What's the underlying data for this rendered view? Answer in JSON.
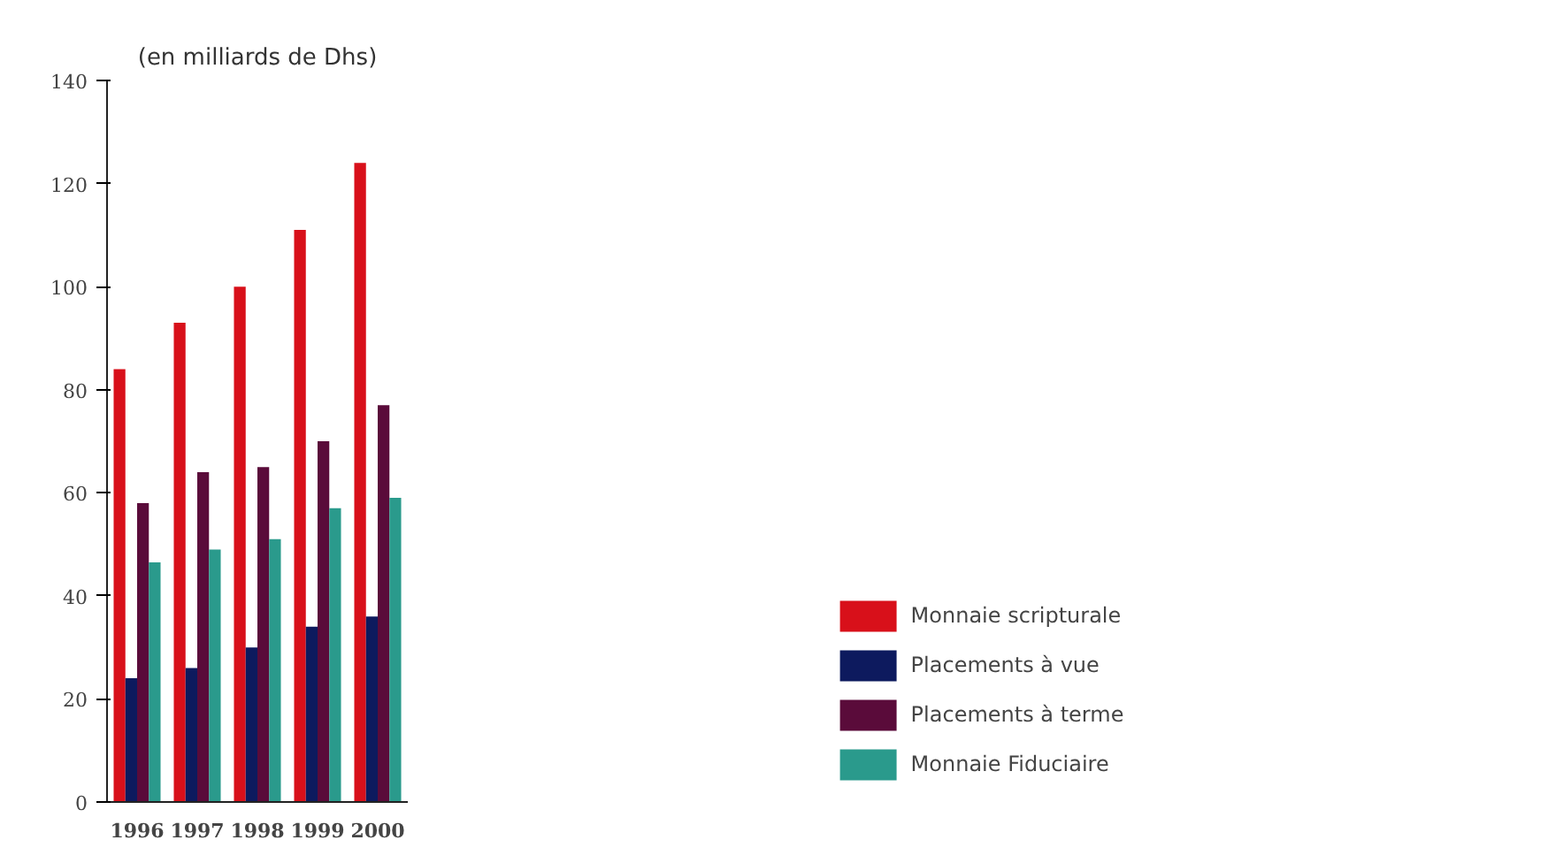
{
  "chart_data": {
    "type": "bar",
    "subtitle": "(en milliards de Dhs)",
    "categories": [
      "1996",
      "1997",
      "1998",
      "1999",
      "2000"
    ],
    "series": [
      {
        "name": "Monnaie scripturale",
        "color": "#d8101a",
        "values": [
          84,
          93,
          100,
          111,
          124
        ]
      },
      {
        "name": "Placements à vue",
        "color": "#0d1a5e",
        "values": [
          24,
          26,
          30,
          34,
          36
        ]
      },
      {
        "name": "Placements à terme",
        "color": "#5a0b3a",
        "values": [
          58,
          64,
          65,
          70,
          77
        ]
      },
      {
        "name": "Monnaie Fiduciaire",
        "color": "#2a9a8c",
        "values": [
          46.5,
          49,
          51,
          57,
          59
        ]
      }
    ],
    "ylim": [
      0,
      140
    ],
    "yticks": [
      0,
      20,
      40,
      60,
      80,
      100,
      120,
      140
    ],
    "grid": false,
    "legend": "bottom right"
  }
}
